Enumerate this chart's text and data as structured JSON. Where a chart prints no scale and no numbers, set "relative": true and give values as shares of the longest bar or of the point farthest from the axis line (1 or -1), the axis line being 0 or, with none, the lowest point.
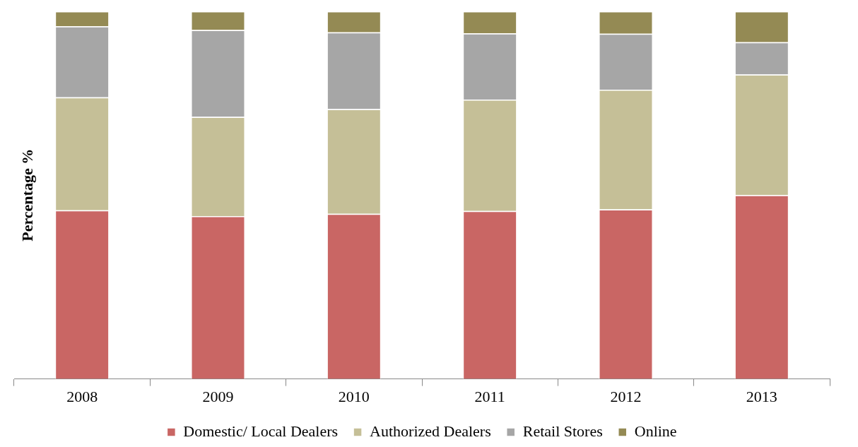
{
  "chart_data": {
    "type": "bar",
    "stacked": true,
    "relative": true,
    "ylabel": "Percentage %",
    "categories": [
      "2008",
      "2009",
      "2010",
      "2011",
      "2012",
      "2013"
    ],
    "series": [
      {
        "name": "Domestic/ Local Dealers",
        "color": "#c96664",
        "values": [
          0.459,
          0.443,
          0.449,
          0.457,
          0.461,
          0.5
        ]
      },
      {
        "name": "Authorized Dealers",
        "color": "#c5bf97",
        "values": [
          0.307,
          0.27,
          0.285,
          0.303,
          0.326,
          0.328
        ]
      },
      {
        "name": "Retail Stores",
        "color": "#a6a6a6",
        "values": [
          0.193,
          0.236,
          0.209,
          0.18,
          0.152,
          0.088
        ]
      },
      {
        "name": "Online",
        "color": "#948a54",
        "values": [
          0.041,
          0.051,
          0.057,
          0.06,
          0.061,
          0.084
        ]
      }
    ],
    "grid": false,
    "legend": "bottom"
  }
}
